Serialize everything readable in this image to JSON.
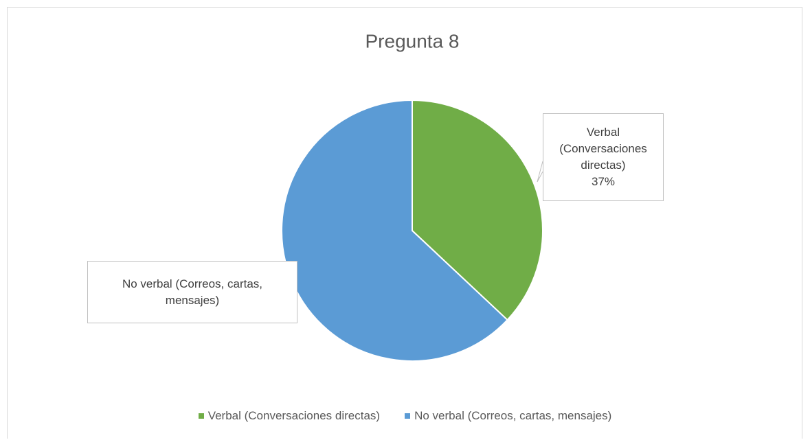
{
  "chart_data": {
    "type": "pie",
    "title": "Pregunta 8",
    "categories": [
      "Verbal (Conversaciones directas)",
      "No verbal (Correos, cartas, mensajes)"
    ],
    "values": [
      37,
      63
    ],
    "value_labels": [
      "37%",
      null
    ],
    "colors": [
      "#70ad47",
      "#5b9bd5"
    ],
    "legend": "bottom"
  }
}
